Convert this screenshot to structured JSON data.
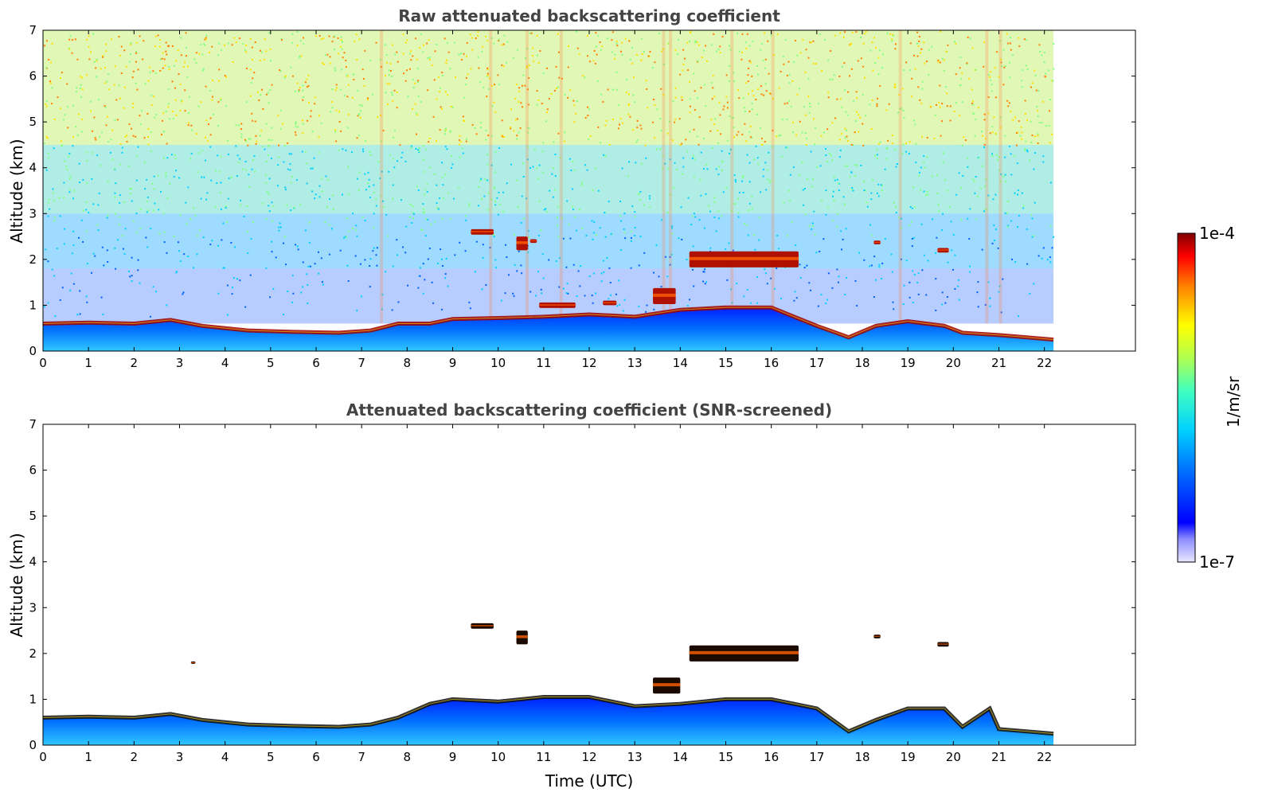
{
  "chart_data": [
    {
      "type": "heatmap",
      "title": "Raw attenuated backscattering coefficient",
      "xlabel": "",
      "ylabel": "Altitude (km)",
      "xlim": [
        0,
        24
      ],
      "ylim": [
        0,
        7
      ],
      "x_ticks": [
        0,
        1,
        2,
        3,
        4,
        5,
        6,
        7,
        8,
        9,
        10,
        11,
        12,
        13,
        14,
        15,
        16,
        17,
        18,
        19,
        20,
        21,
        22
      ],
      "y_ticks": [
        0,
        1,
        2,
        3,
        4,
        5,
        6,
        7
      ],
      "data_end_time": 22.2,
      "noisy_background": true,
      "boundary_layer": [
        [
          0,
          0.6
        ],
        [
          1,
          0.62
        ],
        [
          2,
          0.6
        ],
        [
          2.8,
          0.68
        ],
        [
          3.5,
          0.55
        ],
        [
          4.5,
          0.45
        ],
        [
          5.5,
          0.42
        ],
        [
          6.5,
          0.4
        ],
        [
          7.2,
          0.45
        ],
        [
          7.8,
          0.6
        ],
        [
          8.5,
          0.6
        ],
        [
          9,
          0.7
        ],
        [
          10,
          0.72
        ],
        [
          11,
          0.75
        ],
        [
          12,
          0.8
        ],
        [
          13,
          0.75
        ],
        [
          14,
          0.9
        ],
        [
          15,
          0.95
        ],
        [
          16,
          0.95
        ],
        [
          17,
          0.55
        ],
        [
          17.7,
          0.3
        ],
        [
          18.3,
          0.55
        ],
        [
          19,
          0.65
        ],
        [
          19.8,
          0.55
        ],
        [
          20.2,
          0.4
        ],
        [
          21,
          0.35
        ],
        [
          22.2,
          0.25
        ]
      ],
      "clouds": [
        {
          "t0": 9.4,
          "t1": 9.9,
          "z": 2.6,
          "dz": 0.12
        },
        {
          "t0": 10.4,
          "t1": 10.65,
          "z": 2.35,
          "dz": 0.3
        },
        {
          "t0": 10.7,
          "t1": 10.85,
          "z": 2.4,
          "dz": 0.08
        },
        {
          "t0": 14.2,
          "t1": 16.6,
          "z": 2.0,
          "dz": 0.35
        },
        {
          "t0": 18.25,
          "t1": 18.4,
          "z": 2.37,
          "dz": 0.08
        },
        {
          "t0": 19.65,
          "t1": 19.9,
          "z": 2.2,
          "dz": 0.1
        },
        {
          "t0": 10.9,
          "t1": 11.7,
          "z": 1.0,
          "dz": 0.12
        },
        {
          "t0": 12.3,
          "t1": 12.6,
          "z": 1.05,
          "dz": 0.1
        },
        {
          "t0": 13.4,
          "t1": 13.9,
          "z": 1.2,
          "dz": 0.35
        }
      ],
      "colorbar": {
        "min_label": "1e-7",
        "max_label": "1e-4",
        "unit": "1/m/sr",
        "colormap": "jet",
        "scale": "log"
      }
    },
    {
      "type": "heatmap",
      "title": "Attenuated backscattering coefficient (SNR-screened)",
      "xlabel": "Time (UTC)",
      "ylabel": "Altitude (km)",
      "xlim": [
        0,
        24
      ],
      "ylim": [
        0,
        7
      ],
      "x_ticks": [
        0,
        1,
        2,
        3,
        4,
        5,
        6,
        7,
        8,
        9,
        10,
        11,
        12,
        13,
        14,
        15,
        16,
        17,
        18,
        19,
        20,
        21,
        22
      ],
      "y_ticks": [
        0,
        1,
        2,
        3,
        4,
        5,
        6,
        7
      ],
      "data_end_time": 22.2,
      "noisy_background": false,
      "boundary_layer": [
        [
          0,
          0.6
        ],
        [
          1,
          0.62
        ],
        [
          2,
          0.6
        ],
        [
          2.8,
          0.68
        ],
        [
          3.5,
          0.55
        ],
        [
          4.5,
          0.45
        ],
        [
          5.5,
          0.42
        ],
        [
          6.5,
          0.4
        ],
        [
          7.2,
          0.45
        ],
        [
          7.8,
          0.6
        ],
        [
          8.5,
          0.9
        ],
        [
          9,
          1.0
        ],
        [
          10,
          0.95
        ],
        [
          11,
          1.05
        ],
        [
          12,
          1.05
        ],
        [
          13,
          0.85
        ],
        [
          14,
          0.9
        ],
        [
          15,
          1.0
        ],
        [
          16,
          1.0
        ],
        [
          17,
          0.8
        ],
        [
          17.7,
          0.3
        ],
        [
          18.3,
          0.55
        ],
        [
          19,
          0.8
        ],
        [
          19.8,
          0.8
        ],
        [
          20.2,
          0.4
        ],
        [
          20.8,
          0.8
        ],
        [
          21,
          0.35
        ],
        [
          22.2,
          0.25
        ]
      ],
      "clouds": [
        {
          "t0": 9.4,
          "t1": 9.9,
          "z": 2.6,
          "dz": 0.12
        },
        {
          "t0": 10.4,
          "t1": 10.65,
          "z": 2.35,
          "dz": 0.3
        },
        {
          "t0": 14.2,
          "t1": 16.6,
          "z": 2.0,
          "dz": 0.35
        },
        {
          "t0": 18.25,
          "t1": 18.4,
          "z": 2.37,
          "dz": 0.08
        },
        {
          "t0": 19.65,
          "t1": 19.9,
          "z": 2.2,
          "dz": 0.1
        },
        {
          "t0": 3.25,
          "t1": 3.35,
          "z": 1.8,
          "dz": 0.05
        },
        {
          "t0": 13.4,
          "t1": 14.0,
          "z": 1.3,
          "dz": 0.35
        }
      ],
      "colorbar": {
        "min_label": "1e-7",
        "max_label": "1e-4",
        "unit": "1/m/sr",
        "colormap": "jet",
        "scale": "log"
      }
    }
  ]
}
